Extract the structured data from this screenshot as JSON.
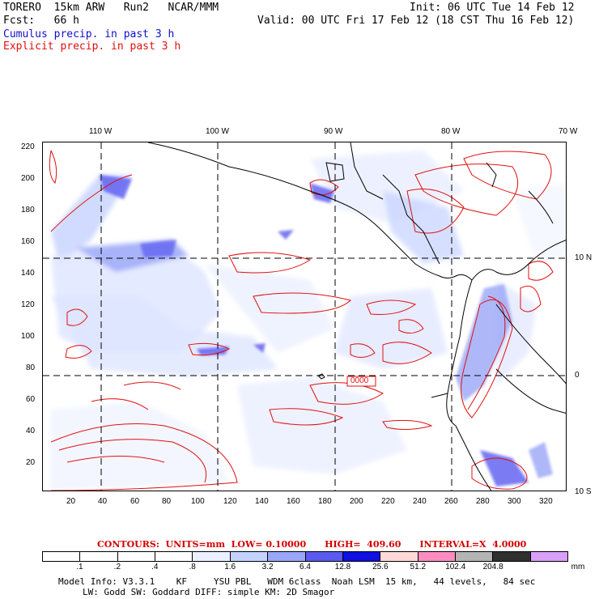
{
  "header": {
    "model_line": "TORERO  15km ARW   Run2   NCAR/MMM",
    "fcst_line": "Fcst:   66 h",
    "init_line": "Init: 06 UTC Tue 14 Feb 12",
    "valid_line": "Valid: 00 UTC Fri 17 Feb 12 (18 CST Thu 16 Feb 12)",
    "cumulus_label": "Cumulus precip. in past 3 h",
    "explicit_label": "Explicit precip. in past 3 h"
  },
  "map": {
    "top_lon_labels": [
      "110 W",
      "100 W",
      "90 W",
      "80 W",
      "70 W"
    ],
    "right_lat_labels": [
      "10 N",
      "0",
      "10 S"
    ],
    "left_y_ticks": [
      "220",
      "200",
      "180",
      "160",
      "140",
      "120",
      "100",
      "80",
      "60",
      "40",
      "20"
    ],
    "bottom_x_ticks": [
      "20",
      "40",
      "60",
      "80",
      "100",
      "120",
      "140",
      "160",
      "180",
      "200",
      "220",
      "240",
      "260",
      "280",
      "300",
      "320"
    ],
    "box_label": "0000",
    "colors": {
      "cumulus": "#2020e0",
      "explicit": "#e01010",
      "coast": "#000000"
    }
  },
  "contour_info": "CONTOURS:  UNITS=mm  LOW= 0.10000      HIGH=  409.60      INTERVAL=X  4.0000",
  "colorbar": {
    "labels": [
      ".1",
      ".2",
      ".4",
      ".8",
      "1.6",
      "3.2",
      "6.4",
      "12.8",
      "25.6",
      "51.2",
      "102.4",
      "204.8"
    ],
    "unit": "mm",
    "colors": [
      "#ffffff",
      "#ffffff",
      "#ffffff",
      "#ffffff",
      "#eaf0ff",
      "#c4d2ff",
      "#9aa6f8",
      "#5a5af0",
      "#1010e0",
      "#ffd8d8",
      "#ff8cc0",
      "#b4b4b4",
      "#303030",
      "#d8a0f8"
    ]
  },
  "footer": {
    "line1": "Model Info: V3.3.1    KF     YSU PBL   WDM 6class  Noah LSM  15 km,   44 levels,   84 sec",
    "line2": "LW: Godd SW: Goddard DIFF: simple KM: 2D Smagor"
  }
}
